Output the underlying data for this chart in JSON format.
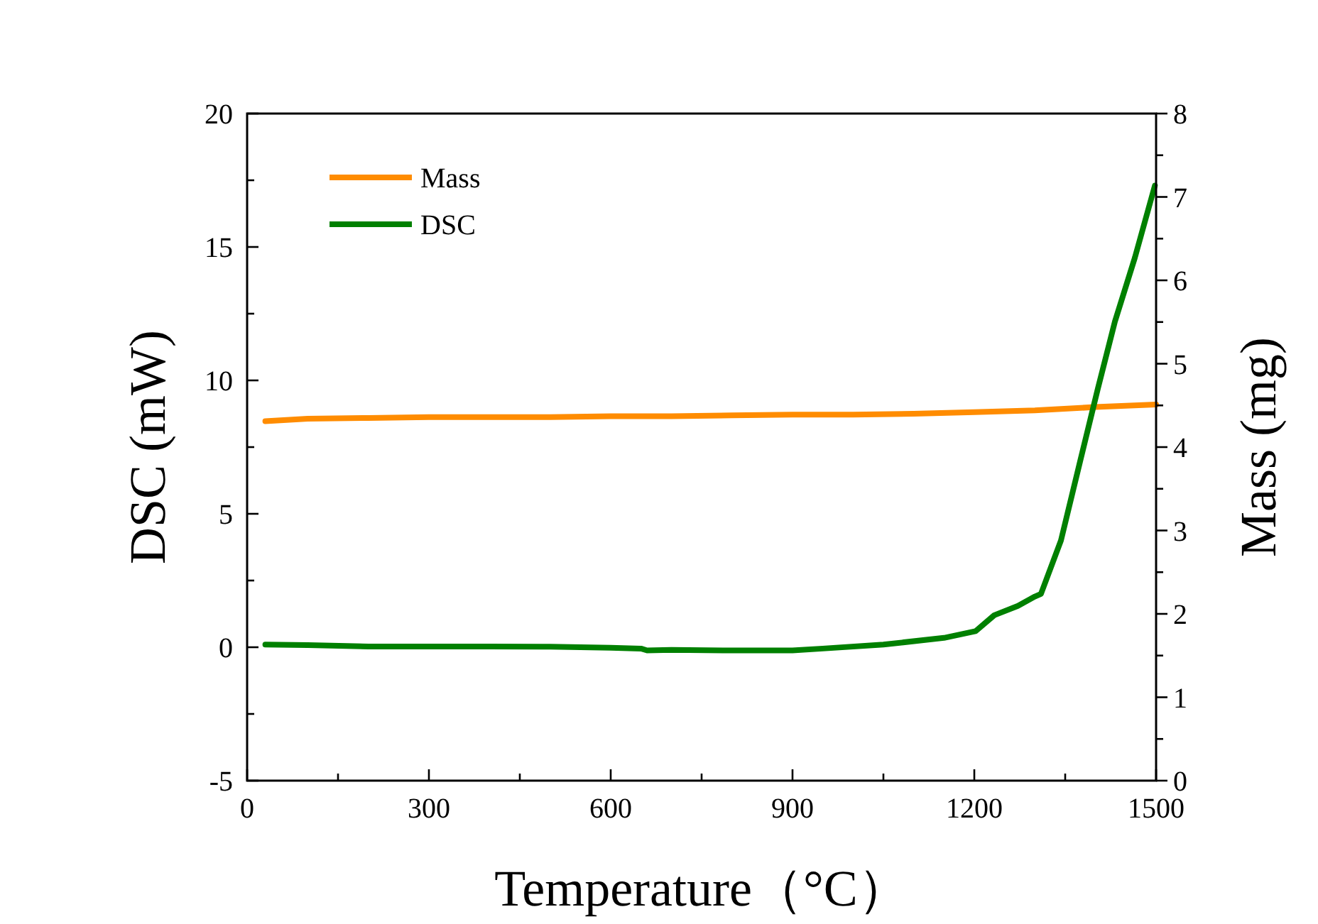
{
  "chart_data": {
    "type": "line",
    "xlabel": "Temperature（°C）",
    "ylabel": "DSC (mW)",
    "y2label": "Mass (mg)",
    "xlim": [
      0,
      1500
    ],
    "xticks": [
      0,
      {
        "value": 150,
        "label": null
      },
      300,
      {
        "value": 450,
        "label": null
      },
      600,
      {
        "value": 750,
        "label": null
      },
      900,
      {
        "value": 1050,
        "label": null
      },
      1200,
      {
        "value": 1350,
        "label": null
      },
      1500
    ],
    "ylim": [
      -5,
      20
    ],
    "yticks": [
      -5,
      {
        "value": -2.5,
        "label": null
      },
      0,
      {
        "value": 2.5,
        "label": null
      },
      5,
      {
        "value": 7.5,
        "label": null
      },
      10,
      {
        "value": 12.5,
        "label": null
      },
      15,
      {
        "value": 17.5,
        "label": null
      },
      20
    ],
    "y2lim": [
      0,
      8
    ],
    "y2ticks": [
      0,
      {
        "value": 0.5,
        "label": null
      },
      1,
      {
        "value": 1.5,
        "label": null
      },
      2,
      {
        "value": 2.5,
        "label": null
      },
      3,
      {
        "value": 3.5,
        "label": null
      },
      4,
      {
        "value": 4.5,
        "label": null
      },
      5,
      {
        "value": 5.5,
        "label": null
      },
      6,
      {
        "value": 6.5,
        "label": null
      },
      7,
      {
        "value": 7.5,
        "label": null
      },
      8
    ],
    "legend": "top left",
    "grid": false,
    "marker": "none",
    "line_style": "solid",
    "series": [
      {
        "name": "Mass",
        "color": "#ff8c00",
        "axis": "y2",
        "x": [
          30,
          100,
          200,
          300,
          400,
          500,
          600,
          700,
          800,
          900,
          1000,
          1100,
          1200,
          1300,
          1400,
          1500
        ],
        "values": [
          4.31,
          4.34,
          4.35,
          4.36,
          4.36,
          4.36,
          4.37,
          4.37,
          4.38,
          4.39,
          4.39,
          4.4,
          4.42,
          4.44,
          4.48,
          4.51
        ]
      },
      {
        "name": "DSC",
        "color": "#008000",
        "x": [
          30,
          100,
          200,
          300,
          400,
          500,
          600,
          650,
          660,
          700,
          800,
          900,
          950,
          1050,
          1150,
          1202,
          1233,
          1272,
          1300,
          1310,
          1343,
          1375,
          1404,
          1432,
          1465,
          1498
        ],
        "values": [
          0.1,
          0.08,
          0.03,
          0.03,
          0.03,
          0.02,
          -0.02,
          -0.05,
          -0.12,
          -0.1,
          -0.12,
          -0.12,
          -0.05,
          0.1,
          0.35,
          0.6,
          1.2,
          1.55,
          1.9,
          2.0,
          4.0,
          7.0,
          9.7,
          12.2,
          14.6,
          17.3
        ]
      }
    ]
  }
}
